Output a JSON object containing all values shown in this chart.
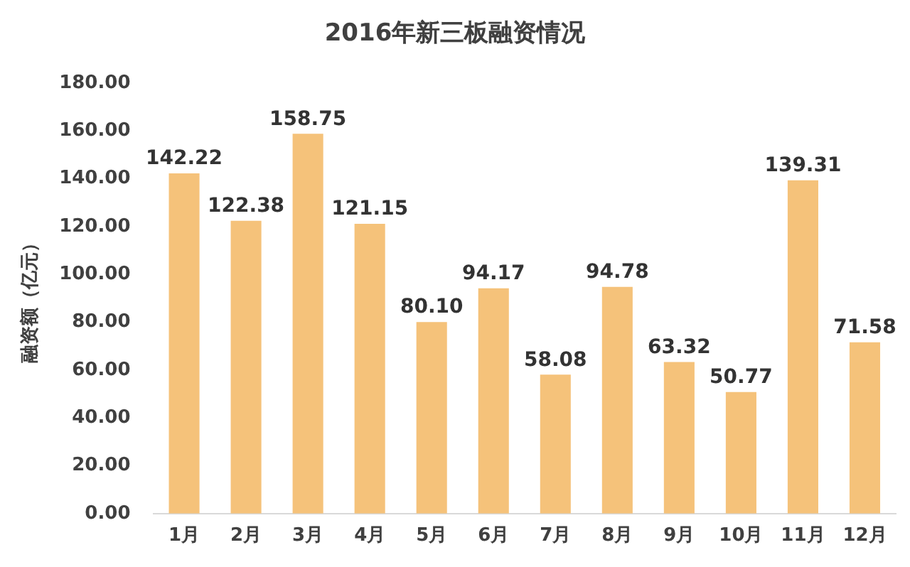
{
  "chart_data": {
    "type": "bar",
    "title": "2016年新三板融资情况",
    "ylabel": "融资额（亿元）",
    "categories": [
      "1月",
      "2月",
      "3月",
      "4月",
      "5月",
      "6月",
      "7月",
      "8月",
      "9月",
      "10月",
      "11月",
      "12月"
    ],
    "values": [
      142.22,
      122.38,
      158.75,
      121.15,
      80.1,
      94.17,
      58.08,
      94.78,
      63.32,
      50.77,
      139.31,
      71.58
    ],
    "value_labels": [
      "142.22",
      "122.38",
      "158.75",
      "121.15",
      "80.10",
      "94.17",
      "58.08",
      "94.78",
      "63.32",
      "50.77",
      "139.31",
      "71.58"
    ],
    "color": "#f5c27a",
    "ylim": [
      0,
      180
    ],
    "yticks": [
      {
        "value": 0,
        "label": "0.00"
      },
      {
        "value": 20,
        "label": "20.00"
      },
      {
        "value": 40,
        "label": "40.00"
      },
      {
        "value": 60,
        "label": "60.00"
      },
      {
        "value": 80,
        "label": "80.00"
      },
      {
        "value": 100,
        "label": "100.00"
      },
      {
        "value": 120,
        "label": "120.00"
      },
      {
        "value": 140,
        "label": "140.00"
      },
      {
        "value": 160,
        "label": "160.00"
      },
      {
        "value": 180,
        "label": "180.00"
      }
    ],
    "grid": false,
    "legend": false
  }
}
